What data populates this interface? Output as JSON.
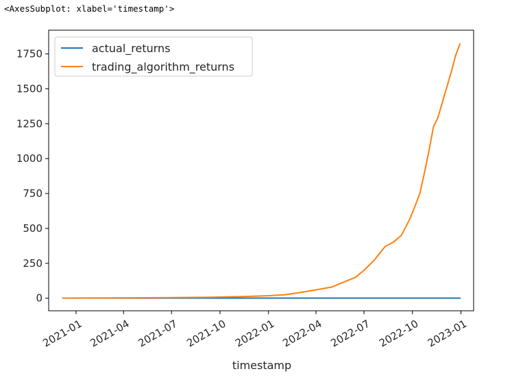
{
  "output_repr": "<AxesSubplot: xlabel='timestamp'>",
  "chart_data": {
    "type": "line",
    "xlabel": "timestamp",
    "ylabel": "",
    "x_tick_labels": [
      "2021-01",
      "2021-04",
      "2021-07",
      "2021-10",
      "2022-01",
      "2022-04",
      "2022-07",
      "2022-10",
      "2023-01"
    ],
    "y_ticks": [
      0,
      250,
      500,
      750,
      1000,
      1250,
      1500,
      1750
    ],
    "xlim": [
      "2020-11-10",
      "2023-01-25"
    ],
    "ylim": [
      -90,
      1920
    ],
    "grid": false,
    "legend_position": "upper-left",
    "colors": {
      "actual_returns": "#1f77b4",
      "trading_algorithm_returns": "#ff7f0e"
    },
    "series": [
      {
        "name": "actual_returns",
        "x": [
          "2020-12-07",
          "2022-12-30"
        ],
        "y": [
          1,
          1
        ]
      },
      {
        "name": "trading_algorithm_returns",
        "x": [
          "2020-12-07",
          "2021-03-15",
          "2021-06-15",
          "2021-09-15",
          "2021-11-15",
          "2022-01-01",
          "2022-02-01",
          "2022-03-01",
          "2022-04-01",
          "2022-05-01",
          "2022-05-20",
          "2022-06-15",
          "2022-07-01",
          "2022-07-20",
          "2022-08-10",
          "2022-08-25",
          "2022-09-10",
          "2022-09-25",
          "2022-10-05",
          "2022-10-15",
          "2022-10-25",
          "2022-11-01",
          "2022-11-10",
          "2022-11-18",
          "2022-11-28",
          "2022-12-05",
          "2022-12-15",
          "2022-12-22",
          "2022-12-30"
        ],
        "y": [
          1,
          2,
          4,
          7,
          12,
          18,
          25,
          40,
          60,
          80,
          110,
          150,
          200,
          270,
          370,
          400,
          450,
          560,
          650,
          750,
          920,
          1050,
          1230,
          1290,
          1420,
          1510,
          1640,
          1740,
          1820
        ]
      }
    ]
  }
}
